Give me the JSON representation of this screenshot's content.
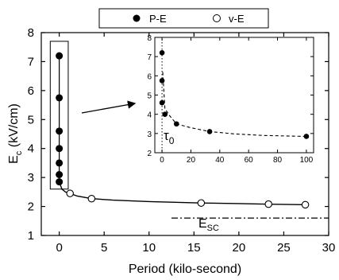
{
  "chart_data": {
    "type": "scatter",
    "xlabel": "Period (kilo-second)",
    "ylabel_main": "E",
    "ylabel_sub": "c",
    "ylabel_unit": " (kV/cm)",
    "xlim": [
      -2,
      30
    ],
    "ylim": [
      1,
      8
    ],
    "xticks": [
      0,
      5,
      10,
      15,
      20,
      25,
      30
    ],
    "yticks": [
      1,
      2,
      3,
      4,
      5,
      6,
      7,
      8
    ],
    "legend": {
      "placement": "top-center",
      "entries": [
        {
          "label": "P-E",
          "marker": "filled-circle"
        },
        {
          "label": "v-E",
          "marker": "open-circle"
        }
      ]
    },
    "series": [
      {
        "name": "P-E",
        "marker": "filled-circle",
        "x": [
          0,
          0,
          0,
          0,
          0,
          0,
          0
        ],
        "y": [
          7.2,
          5.75,
          4.6,
          4.0,
          3.5,
          3.1,
          2.85
        ]
      },
      {
        "name": "v-E",
        "marker": "open-circle",
        "x": [
          1.2,
          3.6,
          15.8,
          23.3,
          27.4
        ],
        "y": [
          2.45,
          2.27,
          2.12,
          2.08,
          2.06
        ]
      }
    ],
    "fit_curve": {
      "x": [
        0,
        0.3,
        0.7,
        1.2,
        2.0,
        3.6,
        6,
        10,
        15.8,
        20,
        23.3,
        27.4
      ],
      "y": [
        2.85,
        2.6,
        2.5,
        2.45,
        2.36,
        2.27,
        2.22,
        2.17,
        2.12,
        2.1,
        2.08,
        2.06
      ]
    },
    "esc_line": {
      "label_main": "E",
      "label_sub": "SC",
      "y": 1.6,
      "x_from": 12.5,
      "x_to": 30
    },
    "zoom_box": {
      "x": [
        -1,
        1
      ],
      "y": [
        2.6,
        7.7
      ]
    },
    "inset": {
      "xlim": [
        -5,
        105
      ],
      "ylim": [
        2,
        8
      ],
      "xticks": [
        0,
        20,
        40,
        60,
        80,
        100
      ],
      "yticks": [
        2,
        3,
        4,
        5,
        6,
        7,
        8
      ],
      "tau_main": "τ",
      "tau_sub": "0",
      "points": {
        "x": [
          0,
          0,
          0,
          2,
          10,
          33,
          100
        ],
        "y": [
          7.2,
          5.75,
          4.6,
          4.0,
          3.5,
          3.1,
          2.85
        ]
      },
      "fit_curve": {
        "x": [
          0.5,
          2,
          5,
          10,
          20,
          33,
          50,
          70,
          100
        ],
        "y": [
          6.2,
          4.3,
          3.95,
          3.5,
          3.3,
          3.1,
          2.98,
          2.9,
          2.85
        ]
      },
      "vertical_dotted_x": 0
    }
  }
}
